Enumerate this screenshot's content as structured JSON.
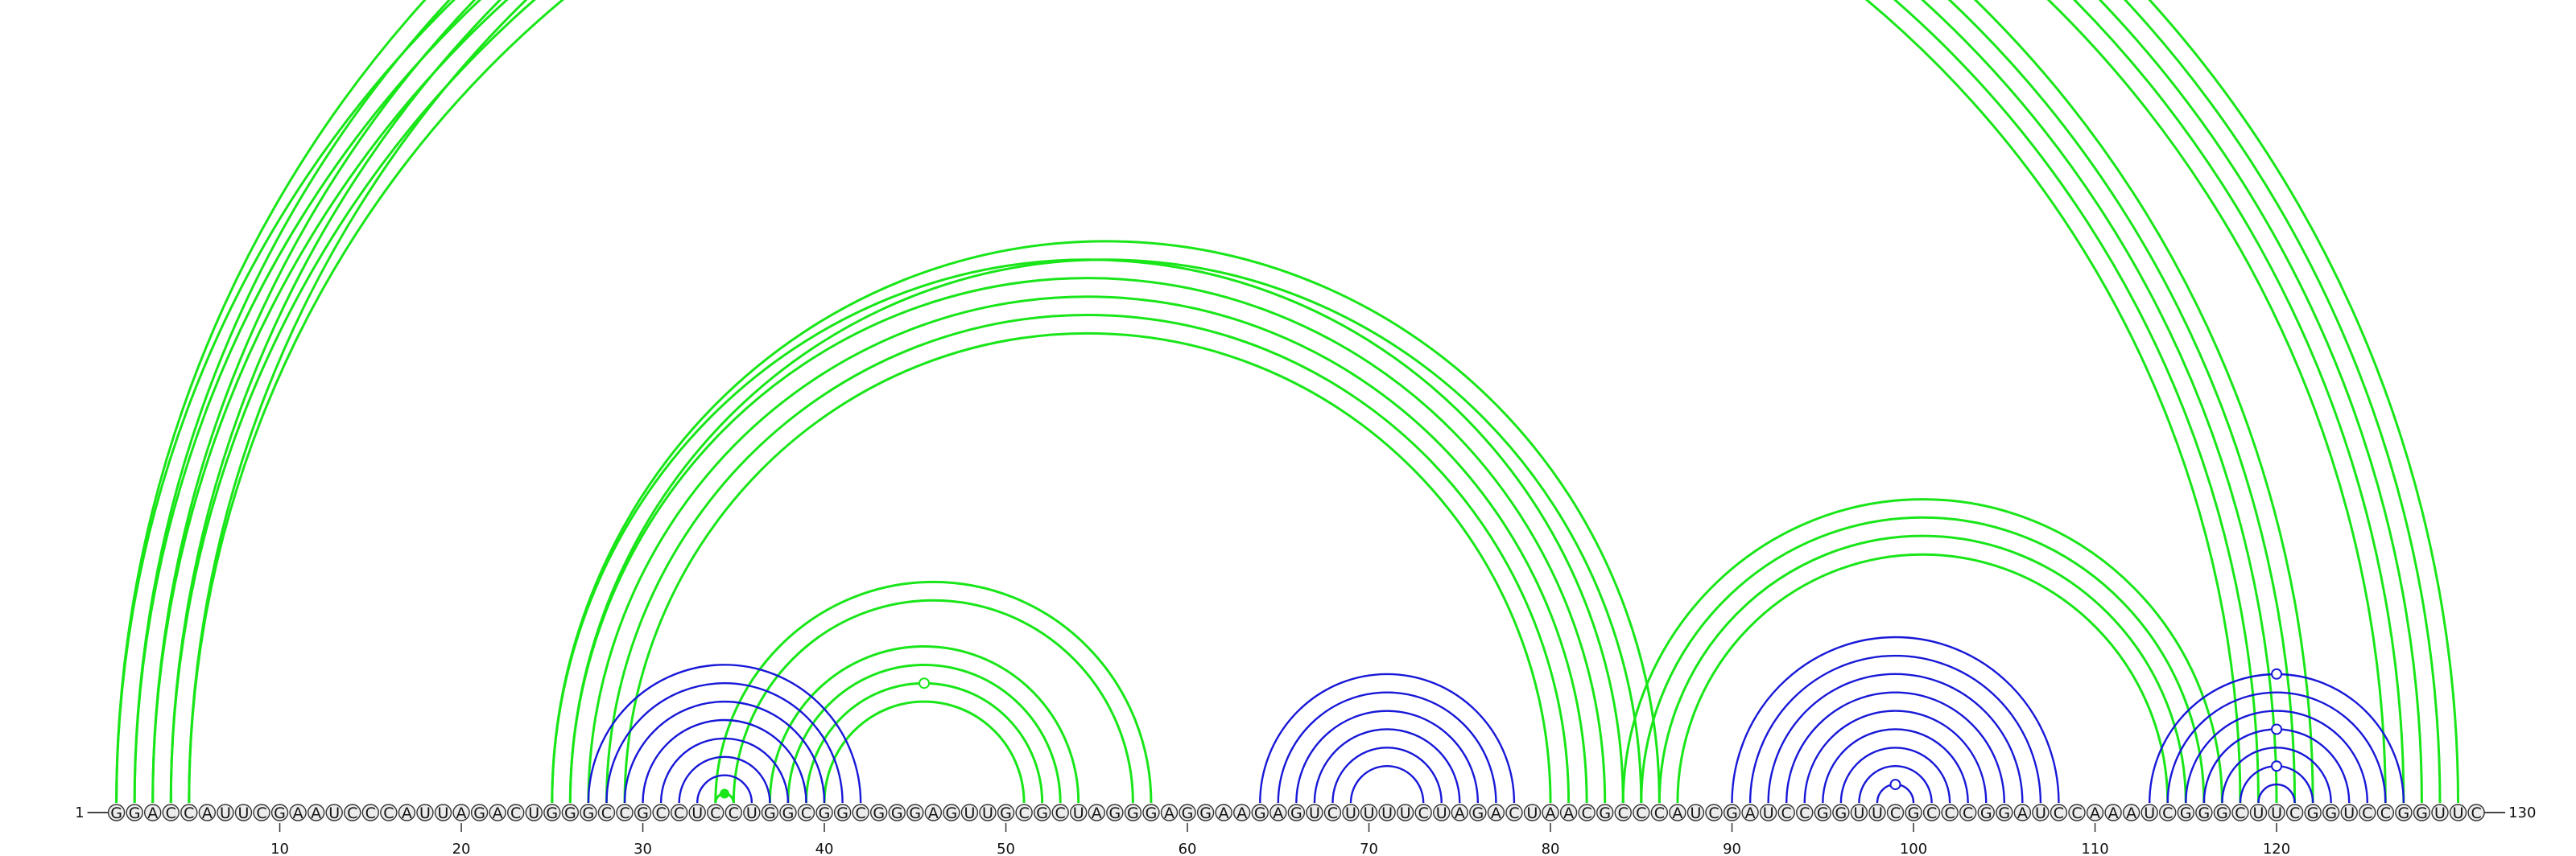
{
  "diagram": {
    "type": "rna-arc-diagram",
    "sequence": "GGACCAUUCGAAUCCCAUUAGACUGGGCCGCCUCCUGGCGGCGGGAGUUGCGCUAGGGAGGAAGAGUCUUUUCUAGACUAACGCCCAUCGAUCCGGUUCGCCCGGAUCCAAAUCGGGCUUCGGUCCGGUUC",
    "start_label": "1",
    "end_label": "130",
    "ticks": [
      10,
      20,
      30,
      40,
      50,
      60,
      70,
      80,
      90,
      100,
      110,
      120
    ],
    "colors": {
      "green": "#19e619",
      "blue": "#1818d8",
      "nucleotide_fill": "#ececec",
      "nucleotide_stroke": "#333333",
      "backbone": "#444444"
    },
    "arc_groups": [
      {
        "color": "green",
        "pairs": [
          [
            1,
            122
          ],
          [
            2,
            121
          ],
          [
            3,
            120
          ],
          [
            4,
            119
          ],
          [
            5,
            118
          ]
        ]
      },
      {
        "color": "green",
        "pairs": [
          [
            1,
            130
          ],
          [
            2,
            129
          ],
          [
            3,
            128
          ],
          [
            4,
            127
          ],
          [
            5,
            126
          ]
        ]
      },
      {
        "color": "green",
        "pairs": [
          [
            25,
            84
          ],
          [
            26,
            83
          ],
          [
            27,
            82
          ],
          [
            28,
            81
          ],
          [
            29,
            80
          ]
        ]
      },
      {
        "color": "green",
        "pairs": [
          [
            25,
            86
          ],
          [
            26,
            85
          ]
        ]
      },
      {
        "color": "green",
        "pairs": [
          [
            34,
            58
          ],
          [
            35,
            57
          ]
        ]
      },
      {
        "color": "green",
        "pairs": [
          [
            37,
            54
          ],
          [
            38,
            53
          ],
          [
            39,
            52
          ],
          [
            40,
            51
          ]
        ]
      },
      {
        "color": "green",
        "pairs": [
          [
            34,
            35
          ]
        ]
      },
      {
        "color": "green",
        "pairs": [
          [
            84,
            117
          ],
          [
            85,
            116
          ],
          [
            86,
            115
          ],
          [
            87,
            114
          ]
        ]
      },
      {
        "color": "blue",
        "pairs": [
          [
            27,
            42
          ],
          [
            28,
            41
          ],
          [
            29,
            40
          ],
          [
            30,
            39
          ],
          [
            31,
            38
          ],
          [
            32,
            37
          ],
          [
            33,
            36
          ]
        ]
      },
      {
        "color": "blue",
        "pairs": [
          [
            64,
            78
          ],
          [
            65,
            77
          ],
          [
            66,
            76
          ],
          [
            67,
            75
          ],
          [
            68,
            74
          ],
          [
            69,
            73
          ]
        ]
      },
      {
        "color": "blue",
        "pairs": [
          [
            90,
            108
          ],
          [
            91,
            107
          ],
          [
            92,
            106
          ],
          [
            93,
            105
          ],
          [
            94,
            104
          ],
          [
            95,
            103
          ],
          [
            96,
            102
          ],
          [
            97,
            101
          ],
          [
            98,
            100
          ]
        ]
      },
      {
        "color": "blue",
        "pairs": [
          [
            113,
            127
          ],
          [
            114,
            126
          ],
          [
            115,
            125
          ],
          [
            116,
            124
          ],
          [
            117,
            123
          ],
          [
            118,
            122
          ],
          [
            119,
            121
          ]
        ]
      }
    ],
    "markers": [
      {
        "at": [
          1,
          130
        ],
        "color": "green",
        "shape": "open"
      },
      {
        "at": [
          39,
          52
        ],
        "color": "green",
        "shape": "open"
      },
      {
        "at": [
          34,
          35
        ],
        "color": "green",
        "shape": "filled"
      },
      {
        "at": [
          113,
          127
        ],
        "color": "blue",
        "shape": "open"
      },
      {
        "at": [
          116,
          124
        ],
        "color": "blue",
        "shape": "open"
      },
      {
        "at": [
          118,
          122
        ],
        "color": "blue",
        "shape": "open"
      },
      {
        "at": [
          98,
          100
        ],
        "color": "blue",
        "shape": "open"
      }
    ]
  }
}
